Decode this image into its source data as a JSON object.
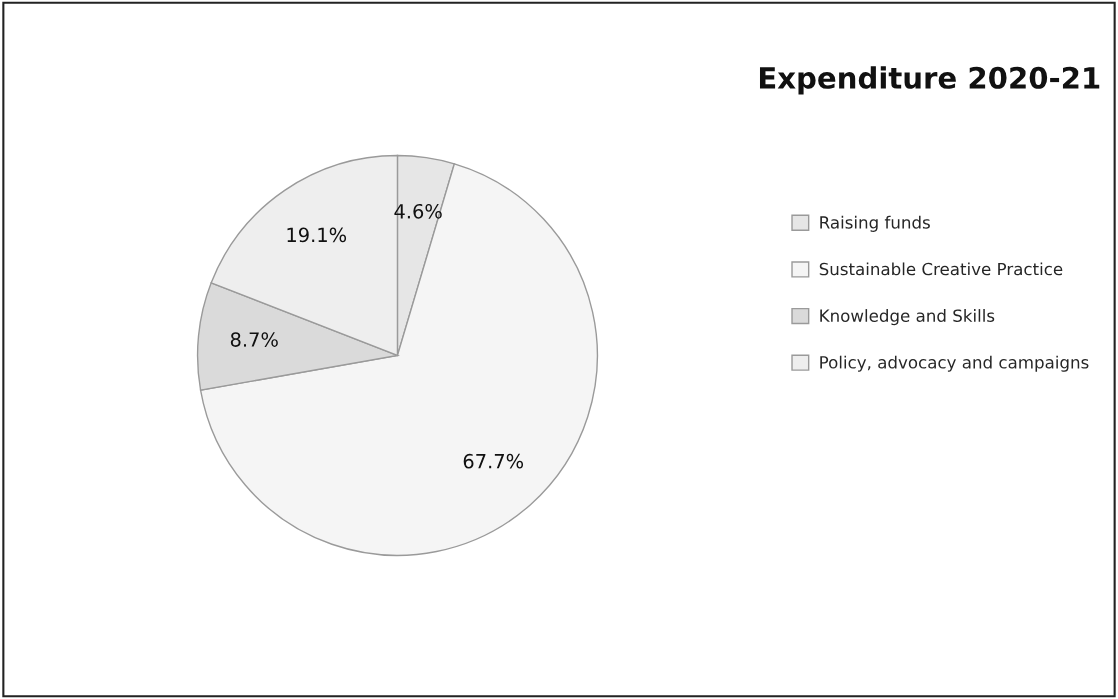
{
  "chart_data": {
    "type": "pie",
    "title": "Expenditure 2020-21",
    "categories": [
      "Raising funds",
      "Sustainable Creative Practice",
      "Knowledge and Skills",
      "Policy, advocacy and campaigns"
    ],
    "values": [
      4.6,
      67.7,
      8.7,
      19.1
    ],
    "value_labels": [
      "4.6%",
      "67.7%",
      "8.7%",
      "19.1%"
    ],
    "colors": [
      "#e6e6e6",
      "#f5f5f5",
      "#dadada",
      "#eeeeee"
    ],
    "legend": "right"
  }
}
